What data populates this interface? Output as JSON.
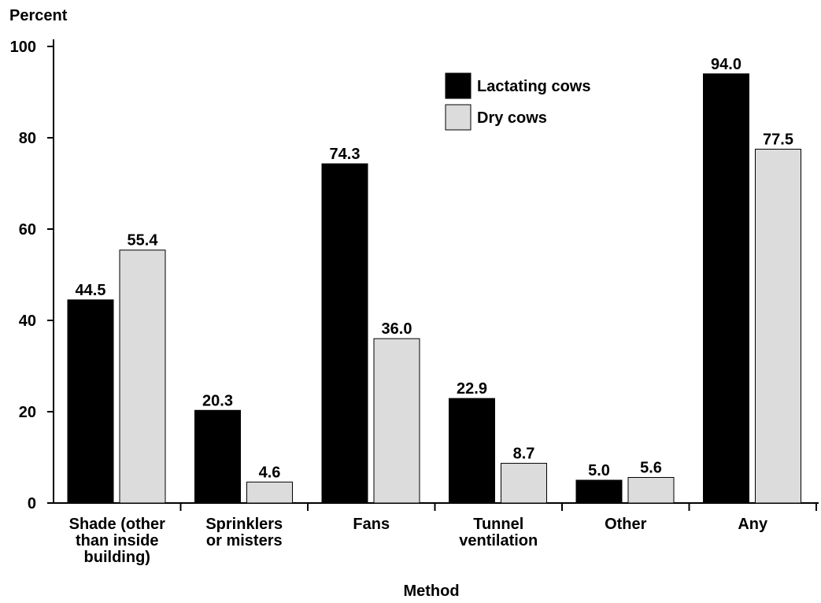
{
  "chart_data": {
    "type": "bar",
    "ylabel": "Percent",
    "xlabel": "Method",
    "ylim": [
      0,
      100
    ],
    "yticks": [
      0,
      20,
      40,
      60,
      80,
      100
    ],
    "categories": [
      [
        "Shade (other",
        "than inside",
        "building)"
      ],
      [
        "Sprinklers",
        "or misters"
      ],
      [
        "Fans"
      ],
      [
        "Tunnel",
        "ventilation"
      ],
      [
        "Other"
      ],
      [
        "Any"
      ]
    ],
    "series": [
      {
        "name": "Lactating cows",
        "color": "#000000",
        "values": [
          44.5,
          20.3,
          74.3,
          22.9,
          5.0,
          94.0
        ],
        "labels": [
          "44.5",
          "20.3",
          "74.3",
          "22.9",
          "5.0",
          "94.0"
        ]
      },
      {
        "name": "Dry cows",
        "color": "#dcdcdc",
        "values": [
          55.4,
          4.6,
          36.0,
          8.7,
          5.6,
          77.5
        ],
        "labels": [
          "55.4",
          "4.6",
          "36.0",
          "8.7",
          "5.6",
          "77.5"
        ]
      }
    ],
    "legend_position": "top-right",
    "grid": false
  }
}
